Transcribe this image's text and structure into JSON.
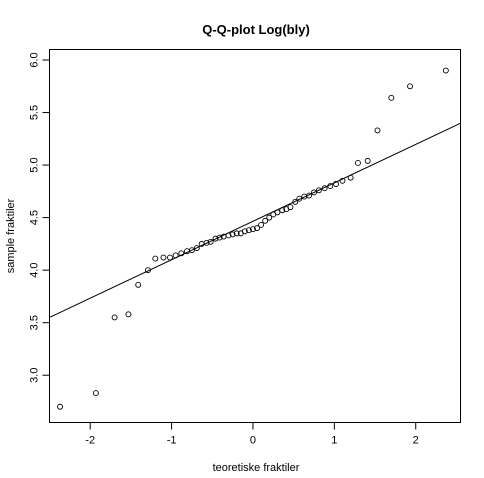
{
  "chart_data": {
    "type": "scatter",
    "title": "Q-Q-plot Log(bly)",
    "xlabel": "teoretiske fraktiler",
    "ylabel": "sample fraktiler",
    "xlim": [
      -2.5,
      2.55
    ],
    "ylim": [
      2.55,
      6.1
    ],
    "xticks": [
      -2,
      -1,
      0,
      1,
      2
    ],
    "xtick_labels": [
      "-2",
      "-1",
      "0",
      "1",
      "2"
    ],
    "yticks": [
      3.0,
      3.5,
      4.0,
      4.5,
      5.0,
      5.5,
      6.0
    ],
    "ytick_labels": [
      "3.0",
      "3.5",
      "4.0",
      "4.5",
      "5.0",
      "5.5",
      "6.0"
    ],
    "grid": false,
    "reference_line": {
      "slope": 0.366,
      "intercept": 4.465
    },
    "points": [
      {
        "x": -2.37,
        "y": 2.7
      },
      {
        "x": -1.93,
        "y": 2.83
      },
      {
        "x": -1.7,
        "y": 3.55
      },
      {
        "x": -1.53,
        "y": 3.58
      },
      {
        "x": -1.41,
        "y": 3.86
      },
      {
        "x": -1.29,
        "y": 4.0
      },
      {
        "x": -1.2,
        "y": 4.11
      },
      {
        "x": -1.1,
        "y": 4.12
      },
      {
        "x": -1.02,
        "y": 4.12
      },
      {
        "x": -0.95,
        "y": 4.14
      },
      {
        "x": -0.88,
        "y": 4.16
      },
      {
        "x": -0.81,
        "y": 4.18
      },
      {
        "x": -0.75,
        "y": 4.19
      },
      {
        "x": -0.69,
        "y": 4.21
      },
      {
        "x": -0.63,
        "y": 4.25
      },
      {
        "x": -0.57,
        "y": 4.26
      },
      {
        "x": -0.52,
        "y": 4.27
      },
      {
        "x": -0.46,
        "y": 4.3
      },
      {
        "x": -0.41,
        "y": 4.31
      },
      {
        "x": -0.36,
        "y": 4.32
      },
      {
        "x": -0.3,
        "y": 4.33
      },
      {
        "x": -0.25,
        "y": 4.34
      },
      {
        "x": -0.2,
        "y": 4.35
      },
      {
        "x": -0.15,
        "y": 4.35
      },
      {
        "x": -0.1,
        "y": 4.37
      },
      {
        "x": -0.05,
        "y": 4.38
      },
      {
        "x": 0.0,
        "y": 4.39
      },
      {
        "x": 0.05,
        "y": 4.4
      },
      {
        "x": 0.1,
        "y": 4.43
      },
      {
        "x": 0.15,
        "y": 4.47
      },
      {
        "x": 0.2,
        "y": 4.5
      },
      {
        "x": 0.25,
        "y": 4.53
      },
      {
        "x": 0.3,
        "y": 4.55
      },
      {
        "x": 0.36,
        "y": 4.57
      },
      {
        "x": 0.41,
        "y": 4.58
      },
      {
        "x": 0.46,
        "y": 4.6
      },
      {
        "x": 0.52,
        "y": 4.65
      },
      {
        "x": 0.57,
        "y": 4.68
      },
      {
        "x": 0.63,
        "y": 4.7
      },
      {
        "x": 0.69,
        "y": 4.71
      },
      {
        "x": 0.75,
        "y": 4.74
      },
      {
        "x": 0.81,
        "y": 4.76
      },
      {
        "x": 0.88,
        "y": 4.78
      },
      {
        "x": 0.95,
        "y": 4.8
      },
      {
        "x": 1.02,
        "y": 4.82
      },
      {
        "x": 1.1,
        "y": 4.85
      },
      {
        "x": 1.2,
        "y": 4.88
      },
      {
        "x": 1.29,
        "y": 5.02
      },
      {
        "x": 1.41,
        "y": 5.04
      },
      {
        "x": 1.53,
        "y": 5.33
      },
      {
        "x": 1.7,
        "y": 5.64
      },
      {
        "x": 1.93,
        "y": 5.75
      },
      {
        "x": 2.37,
        "y": 5.9
      }
    ]
  }
}
